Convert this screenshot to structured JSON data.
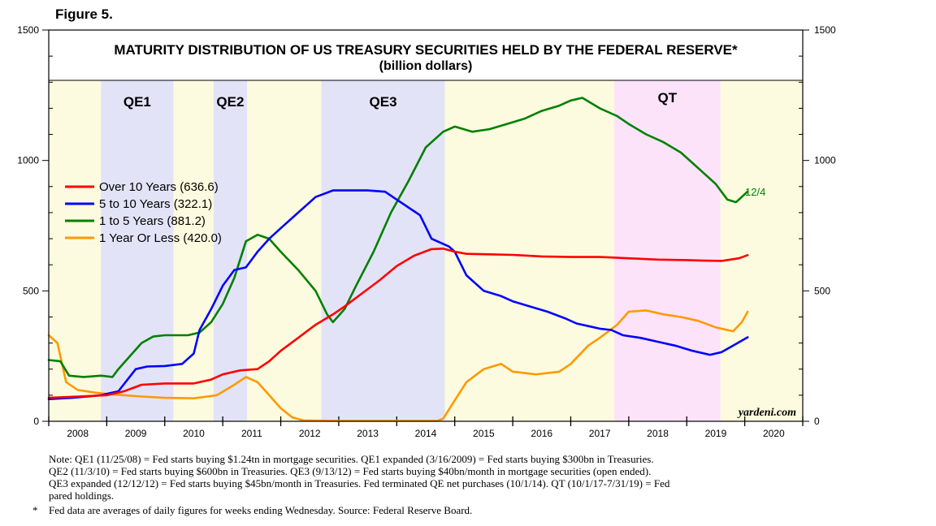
{
  "figure_label": "Figure 5.",
  "chart_data": {
    "type": "line",
    "title": "MATURITY DISTRIBUTION OF US TREASURY SECURITIES HELD BY THE FEDERAL RESERVE*",
    "subtitle": "(billion dollars)",
    "ylim": [
      0,
      1500
    ],
    "yticks": [
      "0",
      "500",
      "1000",
      "1500"
    ],
    "xlim": [
      2008.0,
      2021.0
    ],
    "xtick_labels": [
      "2008",
      "2009",
      "2010",
      "2011",
      "2012",
      "2013",
      "2014",
      "2015",
      "2016",
      "2017",
      "2018",
      "2019",
      "2020"
    ],
    "date_annotation": "12/4",
    "watermark": "yardeni.com",
    "colors": {
      "yellow_band": "#fdfbdf",
      "blue_band": "#e3e3f8",
      "pink_band": "#fce3fa"
    },
    "periods": [
      {
        "label": "QE1",
        "start": 2008.9,
        "end": 2010.15,
        "color": "#e3e3f8"
      },
      {
        "label": "QE2",
        "start": 2010.84,
        "end": 2011.42,
        "color": "#e3e3f8"
      },
      {
        "label": "QE3",
        "start": 2012.7,
        "end": 2014.83,
        "color": "#e3e3f8"
      },
      {
        "label": "QT",
        "start": 2017.75,
        "end": 2019.58,
        "color": "#fce3fa"
      }
    ],
    "series": [
      {
        "name": "Over 10 Years (636.6)",
        "color": "#ff0000",
        "points": [
          [
            2008.0,
            90
          ],
          [
            2008.5,
            95
          ],
          [
            2009.0,
            100
          ],
          [
            2009.3,
            115
          ],
          [
            2009.6,
            140
          ],
          [
            2010.0,
            145
          ],
          [
            2010.5,
            145
          ],
          [
            2010.8,
            160
          ],
          [
            2011.0,
            180
          ],
          [
            2011.3,
            195
          ],
          [
            2011.6,
            200
          ],
          [
            2011.8,
            230
          ],
          [
            2012.0,
            270
          ],
          [
            2012.3,
            320
          ],
          [
            2012.6,
            370
          ],
          [
            2012.9,
            410
          ],
          [
            2013.1,
            440
          ],
          [
            2013.4,
            490
          ],
          [
            2013.7,
            540
          ],
          [
            2014.0,
            595
          ],
          [
            2014.3,
            635
          ],
          [
            2014.6,
            660
          ],
          [
            2014.8,
            662
          ],
          [
            2015.0,
            650
          ],
          [
            2015.2,
            642
          ],
          [
            2015.6,
            640
          ],
          [
            2016.0,
            638
          ],
          [
            2016.5,
            632
          ],
          [
            2017.0,
            630
          ],
          [
            2017.5,
            630
          ],
          [
            2018.0,
            625
          ],
          [
            2018.5,
            620
          ],
          [
            2019.0,
            618
          ],
          [
            2019.3,
            616
          ],
          [
            2019.6,
            615
          ],
          [
            2019.9,
            625
          ],
          [
            2020.05,
            637
          ]
        ]
      },
      {
        "name": "5 to 10 Years (322.1)",
        "color": "#0000ff",
        "points": [
          [
            2008.0,
            85
          ],
          [
            2008.4,
            90
          ],
          [
            2008.9,
            100
          ],
          [
            2009.2,
            115
          ],
          [
            2009.5,
            200
          ],
          [
            2009.7,
            210
          ],
          [
            2010.0,
            212
          ],
          [
            2010.3,
            220
          ],
          [
            2010.5,
            260
          ],
          [
            2010.6,
            350
          ],
          [
            2010.8,
            430
          ],
          [
            2011.0,
            520
          ],
          [
            2011.2,
            580
          ],
          [
            2011.4,
            590
          ],
          [
            2011.6,
            650
          ],
          [
            2011.8,
            700
          ],
          [
            2012.0,
            740
          ],
          [
            2012.3,
            800
          ],
          [
            2012.6,
            860
          ],
          [
            2012.9,
            885
          ],
          [
            2013.2,
            885
          ],
          [
            2013.5,
            885
          ],
          [
            2013.8,
            880
          ],
          [
            2014.0,
            850
          ],
          [
            2014.2,
            820
          ],
          [
            2014.4,
            790
          ],
          [
            2014.6,
            700
          ],
          [
            2014.9,
            670
          ],
          [
            2015.0,
            650
          ],
          [
            2015.2,
            560
          ],
          [
            2015.5,
            500
          ],
          [
            2015.8,
            480
          ],
          [
            2016.0,
            460
          ],
          [
            2016.3,
            440
          ],
          [
            2016.6,
            420
          ],
          [
            2016.9,
            395
          ],
          [
            2017.1,
            375
          ],
          [
            2017.3,
            365
          ],
          [
            2017.5,
            355
          ],
          [
            2017.7,
            350
          ],
          [
            2017.9,
            330
          ],
          [
            2018.2,
            320
          ],
          [
            2018.5,
            305
          ],
          [
            2018.8,
            290
          ],
          [
            2019.1,
            270
          ],
          [
            2019.4,
            255
          ],
          [
            2019.6,
            265
          ],
          [
            2019.8,
            290
          ],
          [
            2020.05,
            322
          ]
        ]
      },
      {
        "name": "1 to 5 Years (881.2)",
        "color": "#008000",
        "points": [
          [
            2008.0,
            235
          ],
          [
            2008.2,
            230
          ],
          [
            2008.35,
            175
          ],
          [
            2008.6,
            170
          ],
          [
            2008.9,
            175
          ],
          [
            2009.1,
            170
          ],
          [
            2009.2,
            200
          ],
          [
            2009.4,
            250
          ],
          [
            2009.6,
            300
          ],
          [
            2009.8,
            325
          ],
          [
            2010.0,
            330
          ],
          [
            2010.4,
            330
          ],
          [
            2010.6,
            340
          ],
          [
            2010.8,
            380
          ],
          [
            2011.0,
            450
          ],
          [
            2011.2,
            550
          ],
          [
            2011.4,
            690
          ],
          [
            2011.6,
            715
          ],
          [
            2011.8,
            700
          ],
          [
            2012.0,
            650
          ],
          [
            2012.3,
            580
          ],
          [
            2012.6,
            500
          ],
          [
            2012.8,
            410
          ],
          [
            2012.9,
            380
          ],
          [
            2013.1,
            430
          ],
          [
            2013.3,
            520
          ],
          [
            2013.6,
            650
          ],
          [
            2013.9,
            800
          ],
          [
            2014.2,
            920
          ],
          [
            2014.5,
            1050
          ],
          [
            2014.8,
            1110
          ],
          [
            2015.0,
            1130
          ],
          [
            2015.3,
            1110
          ],
          [
            2015.6,
            1120
          ],
          [
            2015.9,
            1140
          ],
          [
            2016.2,
            1160
          ],
          [
            2016.5,
            1190
          ],
          [
            2016.8,
            1210
          ],
          [
            2017.0,
            1230
          ],
          [
            2017.2,
            1240
          ],
          [
            2017.5,
            1200
          ],
          [
            2017.8,
            1170
          ],
          [
            2018.0,
            1140
          ],
          [
            2018.3,
            1100
          ],
          [
            2018.6,
            1070
          ],
          [
            2018.9,
            1030
          ],
          [
            2019.1,
            990
          ],
          [
            2019.3,
            950
          ],
          [
            2019.5,
            910
          ],
          [
            2019.7,
            850
          ],
          [
            2019.85,
            840
          ],
          [
            2020.05,
            881
          ]
        ]
      },
      {
        "name": "1 Year Or Less (420.0)",
        "color": "#ff9900",
        "points": [
          [
            2008.0,
            330
          ],
          [
            2008.15,
            300
          ],
          [
            2008.3,
            150
          ],
          [
            2008.5,
            120
          ],
          [
            2008.8,
            110
          ],
          [
            2009.0,
            105
          ],
          [
            2009.3,
            100
          ],
          [
            2009.6,
            95
          ],
          [
            2010.0,
            90
          ],
          [
            2010.5,
            88
          ],
          [
            2010.9,
            100
          ],
          [
            2011.2,
            140
          ],
          [
            2011.4,
            170
          ],
          [
            2011.6,
            150
          ],
          [
            2011.8,
            100
          ],
          [
            2012.0,
            50
          ],
          [
            2012.2,
            15
          ],
          [
            2012.4,
            3
          ],
          [
            2013.0,
            2
          ],
          [
            2014.0,
            2
          ],
          [
            2014.7,
            2
          ],
          [
            2014.8,
            10
          ],
          [
            2015.0,
            80
          ],
          [
            2015.2,
            150
          ],
          [
            2015.5,
            200
          ],
          [
            2015.8,
            220
          ],
          [
            2016.0,
            190
          ],
          [
            2016.4,
            180
          ],
          [
            2016.8,
            190
          ],
          [
            2017.0,
            220
          ],
          [
            2017.3,
            290
          ],
          [
            2017.5,
            320
          ],
          [
            2017.8,
            370
          ],
          [
            2018.0,
            420
          ],
          [
            2018.3,
            425
          ],
          [
            2018.6,
            410
          ],
          [
            2018.9,
            400
          ],
          [
            2019.2,
            385
          ],
          [
            2019.5,
            360
          ],
          [
            2019.8,
            345
          ],
          [
            2019.95,
            380
          ],
          [
            2020.05,
            420
          ]
        ]
      }
    ]
  },
  "notes": {
    "line1": "Note: QE1 (11/25/08) = Fed starts buying $1.24tn in mortgage securities. QE1 expanded (3/16/2009) = Fed starts buying $300bn in Treasuries.",
    "line2": "QE2 (11/3/10) = Fed starts buying $600bn in Treasuries. QE3 (9/13/12) = Fed starts buying $40bn/month in mortgage securities (open ended).",
    "line3": "QE3 expanded (12/12/12) = Fed starts buying $45bn/month in Treasuries. Fed terminated QE net purchases (10/1/14). QT (10/1/17-7/31/19) = Fed",
    "line4": "pared holdings.",
    "star": "*",
    "source": "Fed data are averages of daily figures for weeks ending Wednesday. Source: Federal Reserve Board."
  }
}
